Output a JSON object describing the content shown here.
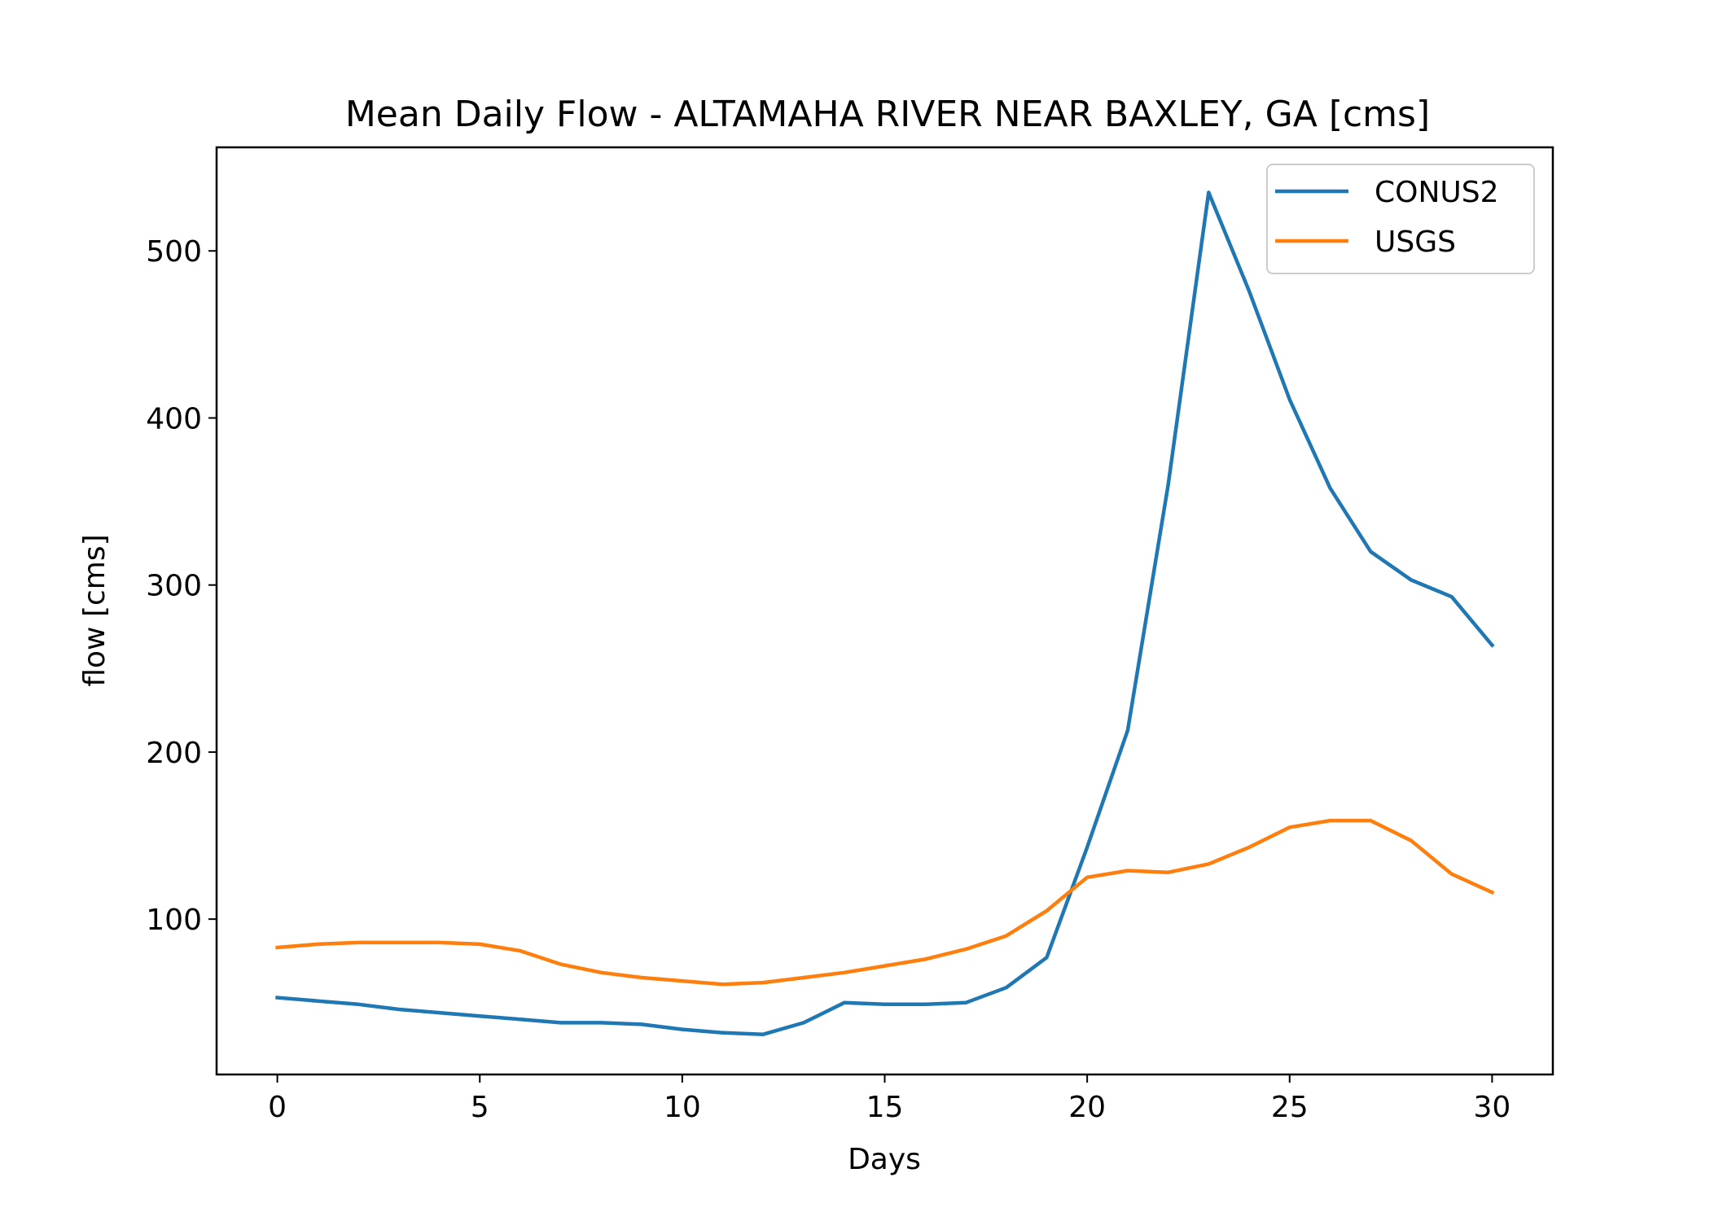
{
  "chart_data": {
    "type": "line",
    "title": "Mean Daily Flow - ALTAMAHA RIVER NEAR BAXLEY, GA [cms]",
    "xlabel": "Days",
    "ylabel": "flow [cms]",
    "xlim": [
      -1.5,
      31.5
    ],
    "ylim": [
      7,
      562
    ],
    "xticks": [
      0,
      5,
      10,
      15,
      20,
      25,
      30
    ],
    "yticks": [
      100,
      200,
      300,
      400,
      500
    ],
    "grid": false,
    "legend": "top-right",
    "x": [
      0,
      1,
      2,
      3,
      4,
      5,
      6,
      7,
      8,
      9,
      10,
      11,
      12,
      13,
      14,
      15,
      16,
      17,
      18,
      19,
      20,
      21,
      22,
      23,
      24,
      25,
      26,
      27,
      28,
      29,
      30
    ],
    "series": [
      {
        "name": "CONUS2",
        "color": "#1f77b4",
        "values": [
          53,
          51,
          49,
          46,
          44,
          42,
          40,
          38,
          38,
          37,
          34,
          32,
          31,
          38,
          50,
          49,
          49,
          50,
          59,
          77,
          143,
          213,
          360,
          535,
          476,
          411,
          358,
          320,
          303,
          293,
          264
        ]
      },
      {
        "name": "USGS",
        "color": "#ff7f0e",
        "values": [
          83,
          85,
          86,
          86,
          86,
          85,
          81,
          73,
          68,
          65,
          63,
          61,
          62,
          65,
          68,
          72,
          76,
          82,
          90,
          105,
          125,
          129,
          128,
          133,
          143,
          155,
          159,
          159,
          147,
          127,
          116
        ]
      }
    ]
  }
}
